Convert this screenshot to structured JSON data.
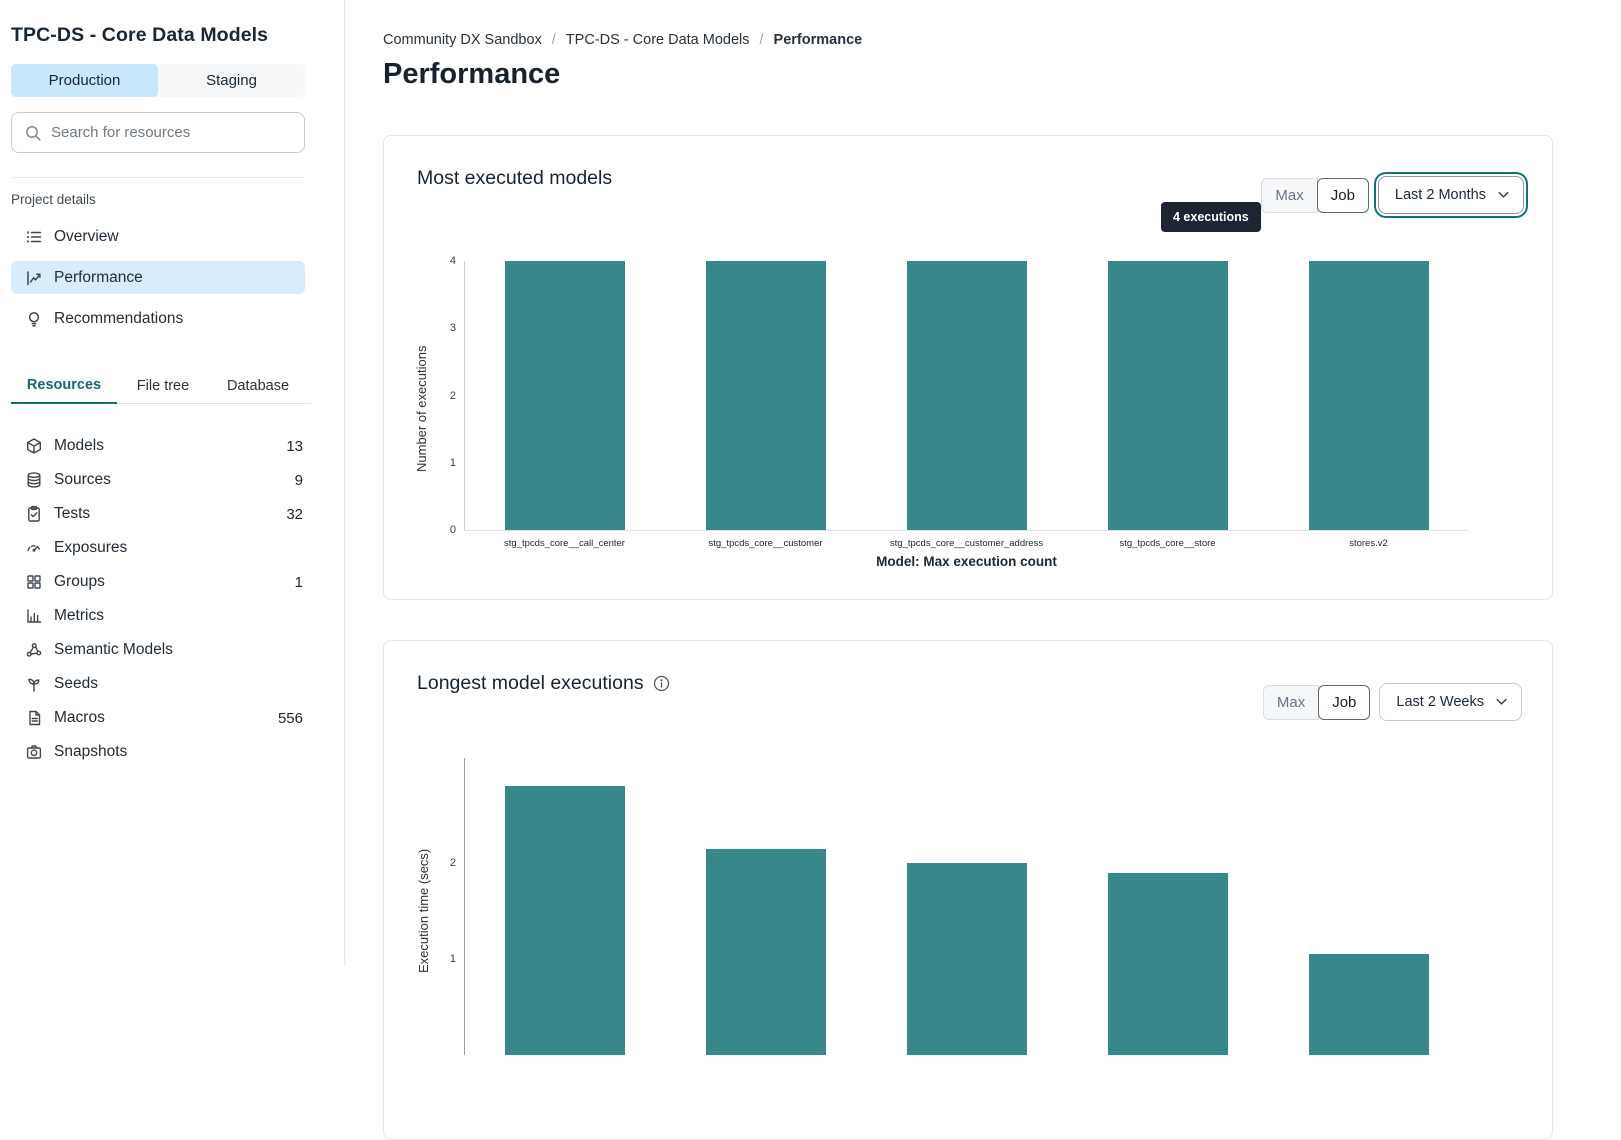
{
  "sidebar": {
    "project_title": "TPC-DS - Core Data Models",
    "env_tabs": [
      {
        "label": "Production",
        "active": true
      },
      {
        "label": "Staging",
        "active": false
      }
    ],
    "search": {
      "placeholder": "Search for resources",
      "icon": "search-icon"
    },
    "section_label": "Project details",
    "nav": [
      {
        "label": "Overview",
        "icon": "list-icon",
        "active": false
      },
      {
        "label": "Performance",
        "icon": "line-chart-icon",
        "active": true
      },
      {
        "label": "Recommendations",
        "icon": "lightbulb-icon",
        "active": false
      }
    ],
    "resource_tabs": [
      {
        "label": "Resources",
        "active": true
      },
      {
        "label": "File tree",
        "active": false
      },
      {
        "label": "Database",
        "active": false
      }
    ],
    "resources": [
      {
        "label": "Models",
        "count": "13",
        "icon": "cube-icon"
      },
      {
        "label": "Sources",
        "count": "9",
        "icon": "database-icon"
      },
      {
        "label": "Tests",
        "count": "32",
        "icon": "clipboard-check-icon"
      },
      {
        "label": "Exposures",
        "count": "",
        "icon": "gauge-icon"
      },
      {
        "label": "Groups",
        "count": "1",
        "icon": "grid-icon"
      },
      {
        "label": "Metrics",
        "count": "",
        "icon": "bar-chart-icon"
      },
      {
        "label": "Semantic Models",
        "count": "",
        "icon": "graph-nodes-icon"
      },
      {
        "label": "Seeds",
        "count": "",
        "icon": "sprout-icon"
      },
      {
        "label": "Macros",
        "count": "556",
        "icon": "file-text-icon"
      },
      {
        "label": "Snapshots",
        "count": "",
        "icon": "camera-icon"
      }
    ]
  },
  "main": {
    "breadcrumb": [
      {
        "label": "Community DX Sandbox",
        "current": false
      },
      {
        "label": "TPC-DS - Core Data Models",
        "current": false
      },
      {
        "label": "Performance",
        "current": true
      }
    ],
    "page_title": "Performance",
    "cards": [
      {
        "title": "Most executed models",
        "toggle_max": "Max",
        "toggle_job": "Job",
        "range": "Last 2 Months",
        "tooltip": "4 executions",
        "has_info_icon": false
      },
      {
        "title": "Longest model executions",
        "toggle_max": "Max",
        "toggle_job": "Job",
        "range": "Last 2 Weeks",
        "has_info_icon": true
      }
    ]
  },
  "colors": {
    "bar_teal": "#38878B",
    "active_item_blue": "#D8ECFB",
    "env_tab_blue": "#C9E7FA",
    "teal_accent": "#17686F",
    "tooltip_bg": "#1C2531",
    "select_focus_ring": "#0F717B"
  },
  "chart_data": [
    {
      "type": "bar",
      "title": "Most executed models",
      "categories": [
        "stg_tpcds_core__call_center",
        "stg_tpcds_core__customer",
        "stg_tpcds_core__customer_address",
        "stg_tpcds_core__store",
        "stores.v2"
      ],
      "values": [
        4,
        4,
        4,
        4,
        4
      ],
      "xlabel": "Model: Max execution count",
      "ylabel": "Number of executions",
      "ylim": [
        0,
        4
      ],
      "yticks": [
        0,
        1,
        2,
        3,
        4
      ],
      "legend": "none",
      "grid": "off",
      "color": "#38878B",
      "hover_tooltip": "4 executions"
    },
    {
      "type": "bar",
      "title": "Longest model executions",
      "categories": [
        "",
        "",
        "",
        "",
        ""
      ],
      "values": [
        2.8,
        2.15,
        2.0,
        1.9,
        1.05
      ],
      "xlabel": "",
      "ylabel": "Execution time (secs)",
      "yticks_visible": [
        1,
        2
      ],
      "legend": "none",
      "grid": "off",
      "color": "#38878B",
      "clipped_at_viewport_bottom": true
    }
  ]
}
